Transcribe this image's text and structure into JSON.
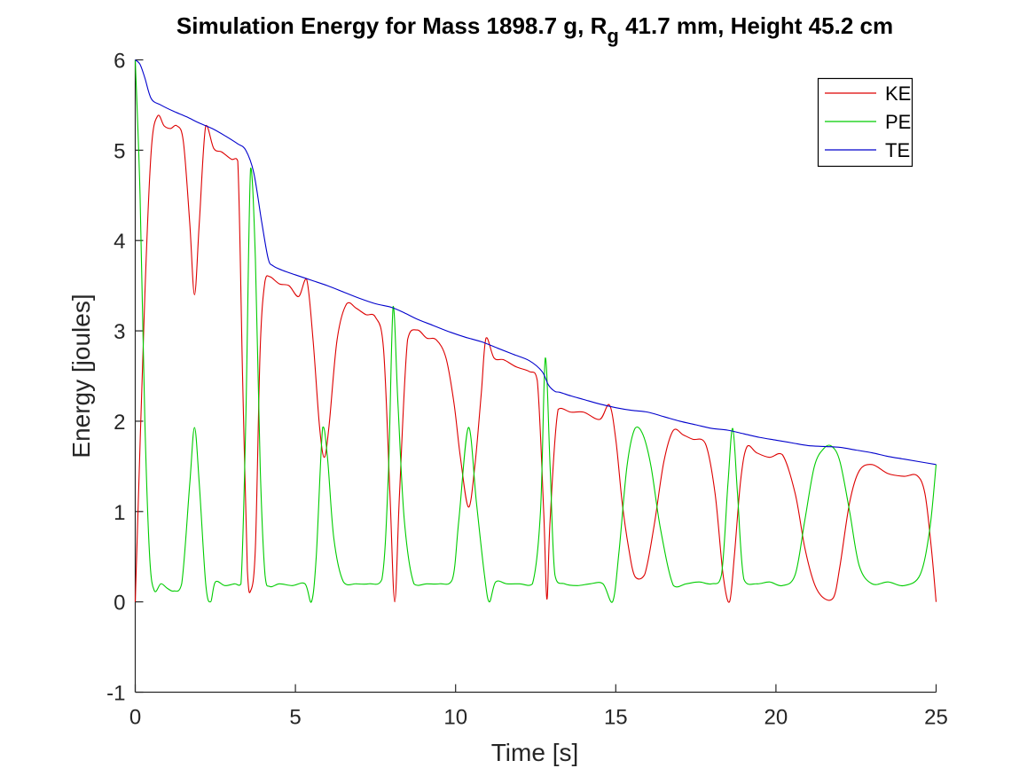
{
  "chart_data": {
    "type": "line",
    "title": {
      "before": "Simulation Energy for Mass 1898.7 g, R",
      "subscript": "g",
      "after": " 41.7 mm,  Height 45.2 cm"
    },
    "xlabel": "Time [s]",
    "ylabel": "Energy [joules]",
    "xlim": [
      0,
      25
    ],
    "ylim": [
      -1,
      6
    ],
    "xticks": [
      0,
      5,
      10,
      15,
      20,
      25
    ],
    "xtick_labels": [
      "0",
      "5",
      "10",
      "15",
      "20",
      "25"
    ],
    "yticks": [
      -1,
      0,
      1,
      2,
      3,
      4,
      5,
      6
    ],
    "ytick_labels": [
      "-1",
      "0",
      "1",
      "2",
      "3",
      "4",
      "5",
      "6"
    ],
    "grid": false,
    "legend_position": "top-right",
    "series": [
      {
        "name": "KE",
        "color": "#dd0000",
        "x": [
          0,
          0.3,
          0.5,
          0.7,
          0.9,
          1.1,
          1.3,
          1.5,
          1.7,
          1.85,
          2.0,
          2.2,
          2.45,
          2.7,
          3.0,
          3.2,
          3.35,
          3.5,
          3.6,
          3.75,
          3.9,
          4.05,
          4.2,
          4.5,
          4.8,
          5.1,
          5.35,
          5.55,
          5.75,
          5.9,
          6.05,
          6.3,
          6.6,
          6.9,
          7.2,
          7.5,
          7.75,
          7.95,
          8.1,
          8.25,
          8.5,
          8.8,
          9.1,
          9.4,
          9.7,
          9.95,
          10.15,
          10.4,
          10.6,
          10.8,
          10.95,
          11.2,
          11.5,
          11.9,
          12.3,
          12.55,
          12.75,
          12.85,
          12.95,
          13.2,
          13.6,
          14.0,
          14.5,
          14.8,
          15.0,
          15.2,
          15.4,
          15.6,
          15.9,
          16.2,
          16.5,
          16.8,
          17.1,
          17.4,
          17.8,
          18.1,
          18.35,
          18.55,
          18.7,
          18.9,
          19.1,
          19.4,
          19.8,
          20.2,
          20.6,
          20.9,
          21.2,
          21.5,
          21.8,
          22.0,
          22.3,
          22.6,
          23.0,
          23.5,
          24.0,
          24.4,
          24.65,
          24.85,
          25.0
        ],
        "y": [
          0,
          3.4,
          5.0,
          5.38,
          5.27,
          5.24,
          5.27,
          5.1,
          4.2,
          3.4,
          4.2,
          5.27,
          5.02,
          4.98,
          4.9,
          4.88,
          2.5,
          0.35,
          0.12,
          0.6,
          2.8,
          3.55,
          3.6,
          3.52,
          3.5,
          3.38,
          3.57,
          2.9,
          1.95,
          1.6,
          1.95,
          2.9,
          3.3,
          3.25,
          3.18,
          3.15,
          2.8,
          1.2,
          0.0,
          1.2,
          2.9,
          3.01,
          2.92,
          2.9,
          2.7,
          2.2,
          1.6,
          1.05,
          1.5,
          2.3,
          2.92,
          2.7,
          2.68,
          2.6,
          2.55,
          2.45,
          1.0,
          0.03,
          0.9,
          2.13,
          2.1,
          2.1,
          2.02,
          2.18,
          1.8,
          1.1,
          0.6,
          0.28,
          0.3,
          0.85,
          1.55,
          1.9,
          1.85,
          1.8,
          1.75,
          1.2,
          0.3,
          0.0,
          0.5,
          1.35,
          1.72,
          1.65,
          1.6,
          1.63,
          1.2,
          0.6,
          0.2,
          0.04,
          0.05,
          0.4,
          1.1,
          1.45,
          1.52,
          1.42,
          1.39,
          1.4,
          1.2,
          0.6,
          0.0
        ]
      },
      {
        "name": "PE",
        "color": "#00cc00",
        "x": [
          0,
          0.15,
          0.3,
          0.45,
          0.6,
          0.8,
          1.0,
          1.2,
          1.45,
          1.7,
          1.85,
          2.0,
          2.2,
          2.35,
          2.5,
          2.8,
          3.1,
          3.3,
          3.45,
          3.6,
          3.75,
          3.9,
          4.05,
          4.2,
          4.5,
          4.9,
          5.3,
          5.5,
          5.65,
          5.85,
          6.0,
          6.2,
          6.5,
          6.9,
          7.3,
          7.7,
          7.9,
          8.05,
          8.2,
          8.4,
          8.7,
          9.1,
          9.5,
          9.9,
          10.1,
          10.4,
          10.65,
          10.9,
          11.05,
          11.25,
          11.6,
          12.0,
          12.4,
          12.65,
          12.8,
          12.95,
          13.1,
          13.4,
          13.8,
          14.2,
          14.6,
          14.9,
          15.1,
          15.35,
          15.6,
          15.85,
          16.1,
          16.4,
          16.8,
          17.2,
          17.6,
          18.0,
          18.3,
          18.5,
          18.65,
          18.8,
          19.0,
          19.4,
          19.8,
          20.2,
          20.6,
          20.9,
          21.2,
          21.5,
          21.75,
          22.0,
          22.3,
          22.6,
          23.0,
          23.5,
          24.0,
          24.5,
          24.8,
          25.0
        ],
        "y": [
          6.0,
          4.5,
          2.0,
          0.5,
          0.12,
          0.2,
          0.15,
          0.12,
          0.2,
          1.3,
          1.93,
          1.3,
          0.2,
          0.0,
          0.22,
          0.18,
          0.2,
          0.2,
          2.0,
          4.8,
          3.8,
          1.5,
          0.3,
          0.17,
          0.2,
          0.18,
          0.2,
          0.0,
          0.5,
          1.93,
          1.6,
          0.7,
          0.22,
          0.2,
          0.2,
          0.25,
          1.4,
          3.27,
          2.2,
          0.9,
          0.2,
          0.2,
          0.2,
          0.25,
          0.9,
          1.93,
          1.1,
          0.3,
          0.0,
          0.22,
          0.2,
          0.2,
          0.2,
          1.0,
          2.7,
          1.5,
          0.3,
          0.2,
          0.18,
          0.2,
          0.2,
          0.0,
          0.55,
          1.5,
          1.92,
          1.85,
          1.5,
          0.8,
          0.18,
          0.2,
          0.22,
          0.2,
          0.3,
          1.3,
          1.92,
          1.2,
          0.25,
          0.2,
          0.22,
          0.18,
          0.3,
          0.9,
          1.5,
          1.7,
          1.72,
          1.55,
          1.0,
          0.4,
          0.2,
          0.22,
          0.18,
          0.3,
          0.8,
          1.52
        ]
      },
      {
        "name": "TE",
        "color": "#0000cc",
        "x": [
          0,
          0.15,
          0.3,
          0.5,
          0.8,
          1.2,
          1.6,
          2.0,
          2.4,
          2.8,
          3.2,
          3.45,
          3.7,
          3.95,
          4.15,
          4.3,
          4.6,
          5.0,
          5.5,
          6.0,
          6.5,
          7.0,
          7.5,
          8.0,
          8.4,
          8.8,
          9.3,
          9.8,
          10.3,
          10.8,
          11.3,
          11.8,
          12.3,
          12.7,
          12.9,
          13.1,
          13.25,
          13.6,
          14.0,
          14.5,
          15.0,
          15.5,
          16.0,
          16.5,
          17.0,
          17.5,
          18.0,
          18.5,
          19.0,
          19.5,
          20.0,
          20.5,
          21.0,
          21.5,
          22.0,
          22.5,
          23.0,
          23.5,
          24.0,
          24.5,
          25.0
        ],
        "y": [
          6.0,
          5.95,
          5.8,
          5.57,
          5.5,
          5.43,
          5.37,
          5.3,
          5.24,
          5.16,
          5.07,
          5.0,
          4.75,
          4.2,
          3.8,
          3.72,
          3.67,
          3.62,
          3.56,
          3.5,
          3.43,
          3.36,
          3.3,
          3.26,
          3.2,
          3.13,
          3.06,
          2.99,
          2.93,
          2.88,
          2.81,
          2.74,
          2.67,
          2.55,
          2.4,
          2.33,
          2.32,
          2.28,
          2.24,
          2.19,
          2.15,
          2.12,
          2.1,
          2.05,
          2.0,
          1.96,
          1.92,
          1.9,
          1.86,
          1.82,
          1.79,
          1.76,
          1.73,
          1.72,
          1.71,
          1.68,
          1.65,
          1.61,
          1.58,
          1.55,
          1.52
        ]
      }
    ]
  }
}
